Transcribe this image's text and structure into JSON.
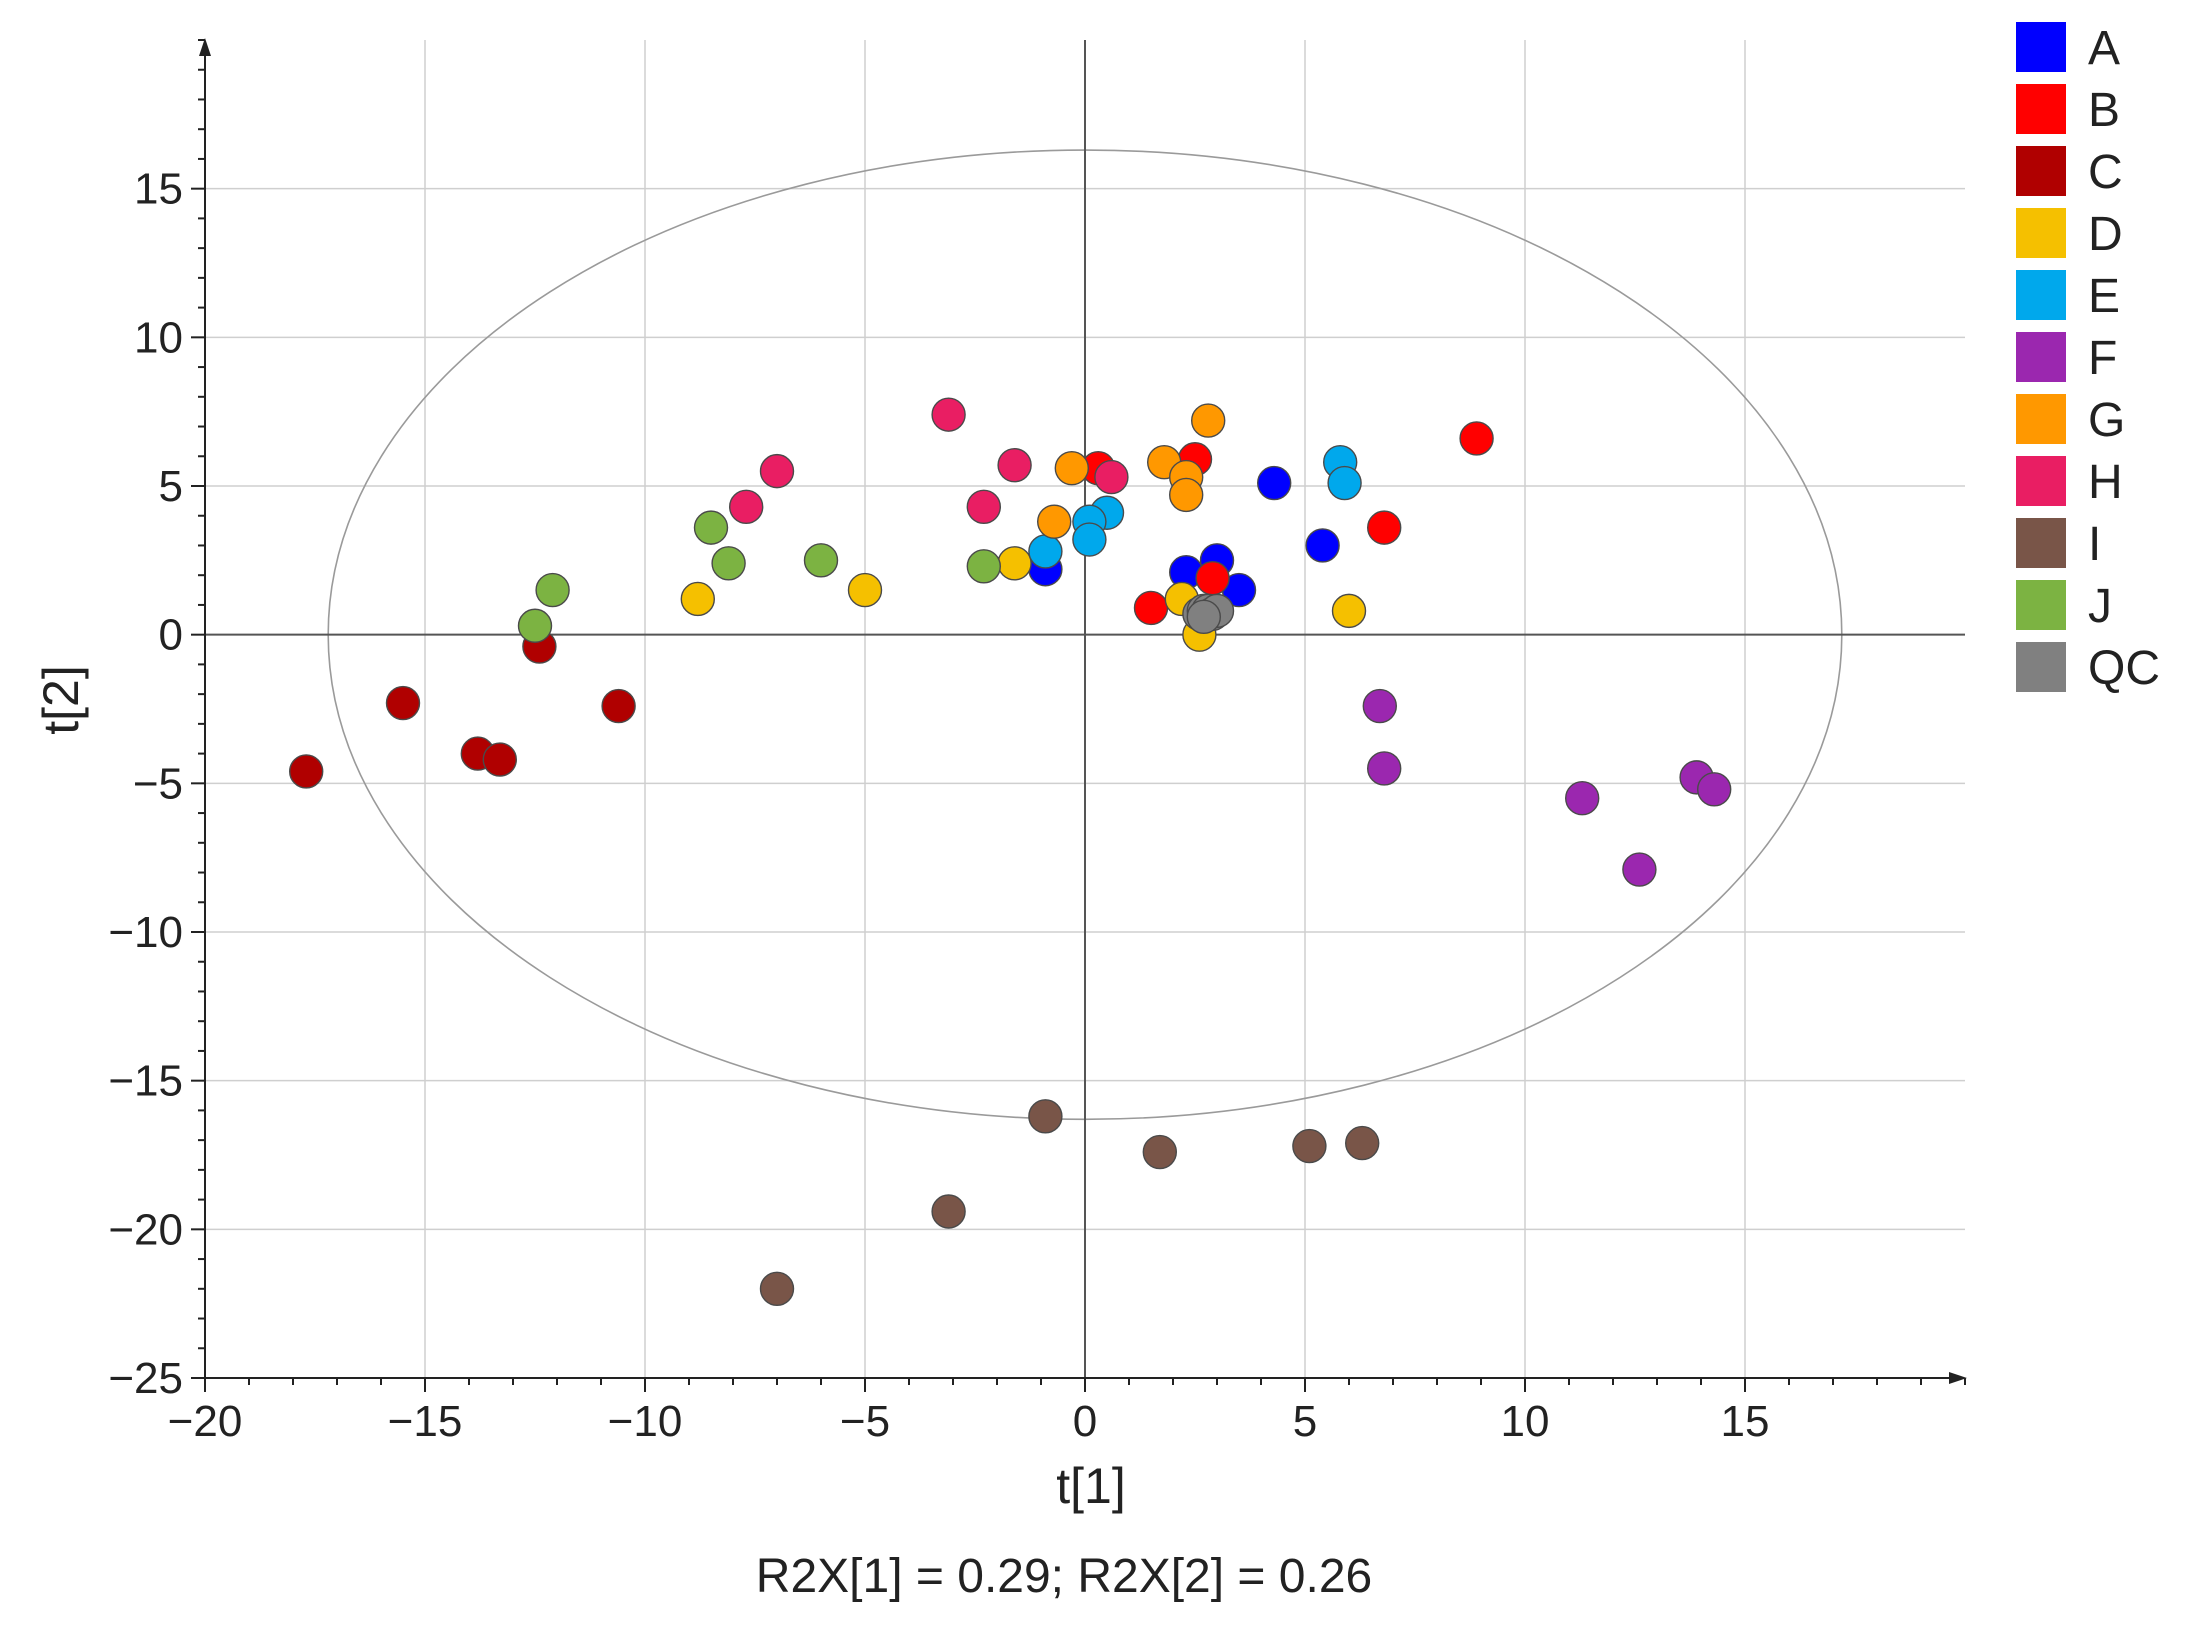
{
  "chart_data": {
    "type": "scatter",
    "title": "",
    "xlabel": "t[1]",
    "ylabel": "t[2]",
    "caption": "R2X[1] = 0.29; R2X[2] = 0.26",
    "xlim": [
      -20,
      20
    ],
    "ylim": [
      -25,
      20
    ],
    "xticks": [
      -20,
      -15,
      -10,
      -5,
      0,
      5,
      10,
      15
    ],
    "yticks": [
      15,
      10,
      5,
      0,
      -5,
      -10,
      -15,
      -20,
      -25
    ],
    "grid": true,
    "legend_position": "right",
    "ellipse": {
      "center": [
        0,
        0
      ],
      "semi_axis_x": 17.2,
      "semi_axis_y": 16.3
    },
    "series": [
      {
        "name": "A",
        "color": "#0000ff",
        "points": [
          [
            4.3,
            5.1
          ],
          [
            5.4,
            3.0
          ],
          [
            2.3,
            2.1
          ],
          [
            3.0,
            2.5
          ],
          [
            3.5,
            1.5
          ],
          [
            -0.9,
            2.2
          ]
        ]
      },
      {
        "name": "B",
        "color": "#ff0000",
        "points": [
          [
            8.9,
            6.6
          ],
          [
            6.8,
            3.6
          ],
          [
            2.5,
            5.9
          ],
          [
            0.3,
            5.6
          ],
          [
            1.5,
            0.9
          ],
          [
            2.9,
            1.9
          ]
        ]
      },
      {
        "name": "C",
        "color": "#b00000",
        "points": [
          [
            -17.7,
            -4.6
          ],
          [
            -15.5,
            -2.3
          ],
          [
            -13.8,
            -4.0
          ],
          [
            -13.3,
            -4.2
          ],
          [
            -12.4,
            -0.4
          ],
          [
            -10.6,
            -2.4
          ]
        ]
      },
      {
        "name": "D",
        "color": "#f5c000",
        "points": [
          [
            -8.8,
            1.2
          ],
          [
            -5.0,
            1.5
          ],
          [
            -1.6,
            2.4
          ],
          [
            2.2,
            1.2
          ],
          [
            2.6,
            0.0
          ],
          [
            6.0,
            0.8
          ]
        ]
      },
      {
        "name": "E",
        "color": "#00a8ec",
        "points": [
          [
            5.8,
            5.8
          ],
          [
            5.9,
            5.1
          ],
          [
            0.5,
            4.1
          ],
          [
            0.1,
            3.8
          ],
          [
            0.1,
            3.2
          ],
          [
            -0.9,
            2.8
          ]
        ]
      },
      {
        "name": "F",
        "color": "#9b27af",
        "points": [
          [
            6.7,
            -2.4
          ],
          [
            6.8,
            -4.5
          ],
          [
            11.3,
            -5.5
          ],
          [
            12.6,
            -7.9
          ],
          [
            13.9,
            -4.8
          ],
          [
            14.3,
            -5.2
          ]
        ]
      },
      {
        "name": "G",
        "color": "#ff9800",
        "points": [
          [
            2.8,
            7.2
          ],
          [
            1.8,
            5.8
          ],
          [
            -0.3,
            5.6
          ],
          [
            2.3,
            5.3
          ],
          [
            2.3,
            4.7
          ],
          [
            -0.7,
            3.8
          ]
        ]
      },
      {
        "name": "H",
        "color": "#e91e63",
        "points": [
          [
            -3.1,
            7.4
          ],
          [
            -1.6,
            5.7
          ],
          [
            0.6,
            5.3
          ],
          [
            -7.0,
            5.5
          ],
          [
            -7.7,
            4.3
          ],
          [
            -2.3,
            4.3
          ]
        ]
      },
      {
        "name": "I",
        "color": "#795548",
        "points": [
          [
            -0.9,
            -16.2
          ],
          [
            1.7,
            -17.4
          ],
          [
            5.1,
            -17.2
          ],
          [
            6.3,
            -17.1
          ],
          [
            -3.1,
            -19.4
          ],
          [
            -7.0,
            -22.0
          ]
        ]
      },
      {
        "name": "J",
        "color": "#7cb342",
        "points": [
          [
            -8.5,
            3.6
          ],
          [
            -8.1,
            2.4
          ],
          [
            -6.0,
            2.5
          ],
          [
            -2.3,
            2.3
          ],
          [
            -12.1,
            1.5
          ],
          [
            -12.5,
            0.3
          ]
        ]
      },
      {
        "name": "QC",
        "color": "#808080",
        "points": [
          [
            2.6,
            0.7
          ],
          [
            2.7,
            0.8
          ],
          [
            2.8,
            0.8
          ],
          [
            2.9,
            0.7
          ],
          [
            3.0,
            0.8
          ],
          [
            2.7,
            0.6
          ]
        ]
      }
    ]
  }
}
